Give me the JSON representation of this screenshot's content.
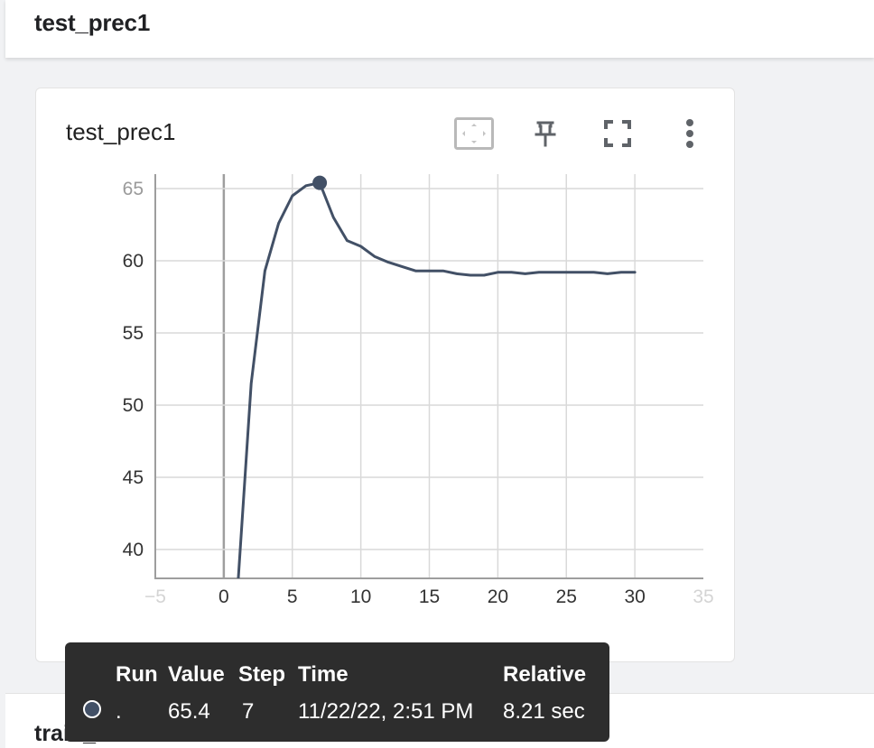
{
  "header": {
    "title": "test_prec1"
  },
  "card": {
    "title": "test_prec1",
    "toolbar": [
      {
        "name": "fit-domain-button",
        "icon": "fit-domain-icon"
      },
      {
        "name": "pin-button",
        "icon": "pin-icon"
      },
      {
        "name": "fullscreen-button",
        "icon": "fullscreen-icon"
      },
      {
        "name": "more-options-button",
        "icon": "more-vert-icon"
      }
    ]
  },
  "chart_data": {
    "type": "line",
    "title": "",
    "xlabel": "",
    "ylabel": "",
    "xlim": [
      -5,
      35
    ],
    "ylim": [
      38,
      66
    ],
    "x_ticks": [
      -5,
      0,
      5,
      10,
      15,
      20,
      25,
      30,
      35
    ],
    "y_ticks": [
      40,
      45,
      50,
      55,
      60,
      65
    ],
    "grid": true,
    "line_color": "#425066",
    "series": [
      {
        "x": [
          1,
          2,
          3,
          4,
          5,
          6,
          7,
          8,
          9,
          10,
          11,
          12,
          13,
          14,
          15,
          16,
          17,
          18,
          19,
          20,
          21,
          22,
          23,
          24,
          25,
          26,
          27,
          28,
          29,
          30
        ],
        "values": [
          37.2,
          51.5,
          59.3,
          62.6,
          64.5,
          65.2,
          65.4,
          63.0,
          61.4,
          61.0,
          60.3,
          59.9,
          59.6,
          59.3,
          59.3,
          59.3,
          59.1,
          59.0,
          59.0,
          59.2,
          59.2,
          59.1,
          59.2,
          59.2,
          59.2,
          59.2,
          59.2,
          59.1,
          59.2,
          59.2
        ]
      }
    ],
    "highlight": {
      "x": 7,
      "y": 65.4
    }
  },
  "tooltip": {
    "headers": {
      "run": "Run",
      "value": "Value",
      "step": "Step",
      "time": "Time",
      "relative": "Relative"
    },
    "row": {
      "run": ".",
      "value": "65.4",
      "step": "7",
      "time": "11/22/22, 2:51 PM",
      "relative": "8.21 sec"
    }
  },
  "next_section": {
    "title": "train_acc"
  }
}
